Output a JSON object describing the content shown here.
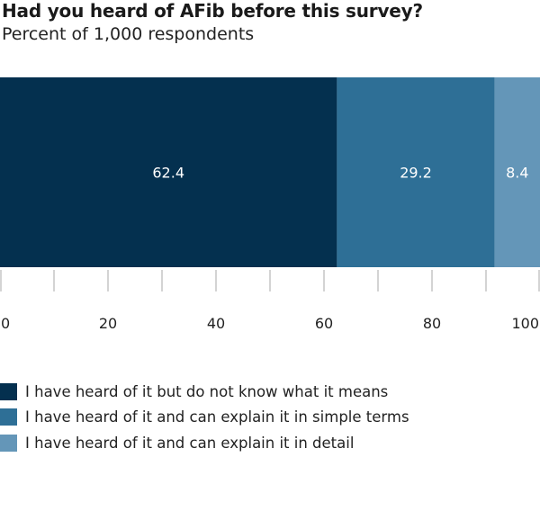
{
  "chart_data": {
    "type": "bar",
    "orientation": "horizontal-stacked",
    "title": "Had you heard of AFib before this survey?",
    "subtitle": "Percent of 1,000 respondents",
    "xlim": [
      0,
      100
    ],
    "x_ticks": [
      0,
      20,
      40,
      60,
      80,
      100
    ],
    "grid": false,
    "legend_position": "bottom-left",
    "series": [
      {
        "name": "I have heard of it but do not know what it means",
        "value": 62.4,
        "label": "62.4",
        "color": "#04304f"
      },
      {
        "name": "I have heard of it and can explain it in simple terms",
        "value": 29.2,
        "label": "29.2",
        "color": "#2e6f96"
      },
      {
        "name": "I have heard of it and can explain it in detail",
        "value": 8.4,
        "label": "8.4",
        "color": "#6496b8"
      }
    ]
  }
}
